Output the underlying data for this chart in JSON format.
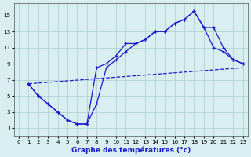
{
  "xlabel": "Graphe des températures (°c)",
  "bg_color": "#d8eef0",
  "line_color": "#1a1acc",
  "grid_color": "#aacccc",
  "xlim": [
    -0.5,
    23.5
  ],
  "ylim": [
    0,
    16.5
  ],
  "xticks": [
    0,
    1,
    2,
    3,
    4,
    5,
    6,
    7,
    8,
    9,
    10,
    11,
    12,
    13,
    14,
    15,
    16,
    17,
    18,
    19,
    20,
    21,
    22,
    23
  ],
  "yticks": [
    1,
    3,
    5,
    7,
    9,
    11,
    13,
    15
  ],
  "line1_x": [
    1,
    2,
    3,
    4,
    5,
    6,
    7,
    8,
    9,
    10,
    11,
    12,
    13,
    14,
    15,
    16,
    17,
    18,
    19,
    20,
    21,
    22,
    23
  ],
  "line1_y": [
    6.5,
    5.0,
    4.0,
    3.0,
    2.0,
    1.5,
    1.5,
    8.5,
    9.0,
    10.0,
    11.5,
    11.5,
    12.0,
    13.0,
    13.0,
    14.0,
    14.5,
    15.5,
    13.5,
    11.0,
    10.5,
    9.5,
    9.0
  ],
  "line2_x": [
    1,
    2,
    3,
    4,
    5,
    6,
    7,
    8,
    9,
    10,
    11,
    12,
    13,
    14,
    15,
    16,
    17,
    18,
    19,
    20,
    21,
    22,
    23
  ],
  "line2_y": [
    6.5,
    5.0,
    4.0,
    3.0,
    2.0,
    1.5,
    1.5,
    4.0,
    8.5,
    9.5,
    10.5,
    11.5,
    12.0,
    13.0,
    13.0,
    14.0,
    14.5,
    15.5,
    13.5,
    13.5,
    11.0,
    9.5,
    9.0
  ],
  "line3_x": [
    1,
    23
  ],
  "line3_y": [
    6.5,
    8.5
  ],
  "line4_x": [
    19,
    20,
    23
  ],
  "line4_y": [
    13.5,
    11.0,
    9.0
  ]
}
